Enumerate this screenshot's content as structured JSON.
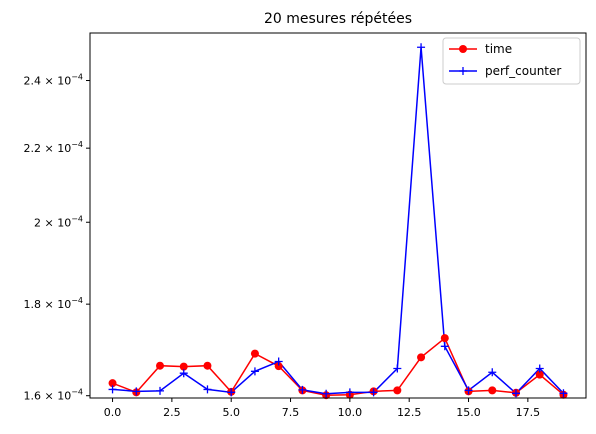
{
  "chart_data": {
    "type": "line",
    "title": "20 mesures répétées",
    "xlabel": "",
    "ylabel": "",
    "yscale": "log",
    "x": [
      0,
      1,
      2,
      3,
      4,
      5,
      6,
      7,
      8,
      9,
      10,
      11,
      12,
      13,
      14,
      15,
      16,
      17,
      18,
      19
    ],
    "series": [
      {
        "name": "time",
        "color": "#ff0000",
        "marker": "circle",
        "values": [
          0.0001626,
          0.0001607,
          0.0001663,
          0.0001661,
          0.0001663,
          0.0001608,
          0.0001689,
          0.0001662,
          0.0001611,
          0.0001601,
          0.0001602,
          0.0001609,
          0.0001611,
          0.0001681,
          0.0001723,
          0.0001609,
          0.0001611,
          0.0001606,
          0.0001644,
          0.0001602
        ]
      },
      {
        "name": "perf_counter",
        "color": "#0000ff",
        "marker": "plus",
        "values": [
          0.0001613,
          0.0001609,
          0.000161,
          0.0001647,
          0.0001613,
          0.0001607,
          0.0001651,
          0.0001672,
          0.0001612,
          0.0001604,
          0.0001607,
          0.0001607,
          0.0001657,
          0.0002505,
          0.0001705,
          0.0001611,
          0.0001649,
          0.0001605,
          0.0001657,
          0.0001605
        ]
      }
    ],
    "xlim": [
      -0.95,
      19.95
    ],
    "ylim": [
      0.00015953,
      0.00025513
    ],
    "xticks": [
      0,
      2.5,
      5,
      7.5,
      10,
      12.5,
      15,
      17.5
    ],
    "xtick_labels": [
      "0.0",
      "2.5",
      "5.0",
      "7.5",
      "10.0",
      "12.5",
      "15.0",
      "17.5"
    ],
    "yticks": [
      0.00016,
      0.00018,
      0.0002,
      0.00022,
      0.00024
    ],
    "ytick_mantissas": [
      "1.6",
      "1.8",
      "2",
      "2.2",
      "2.4"
    ],
    "ytick_base": "10",
    "ytick_exponent": "−4",
    "ytick_times": "×",
    "legend_position": "top-right",
    "grid": false
  }
}
